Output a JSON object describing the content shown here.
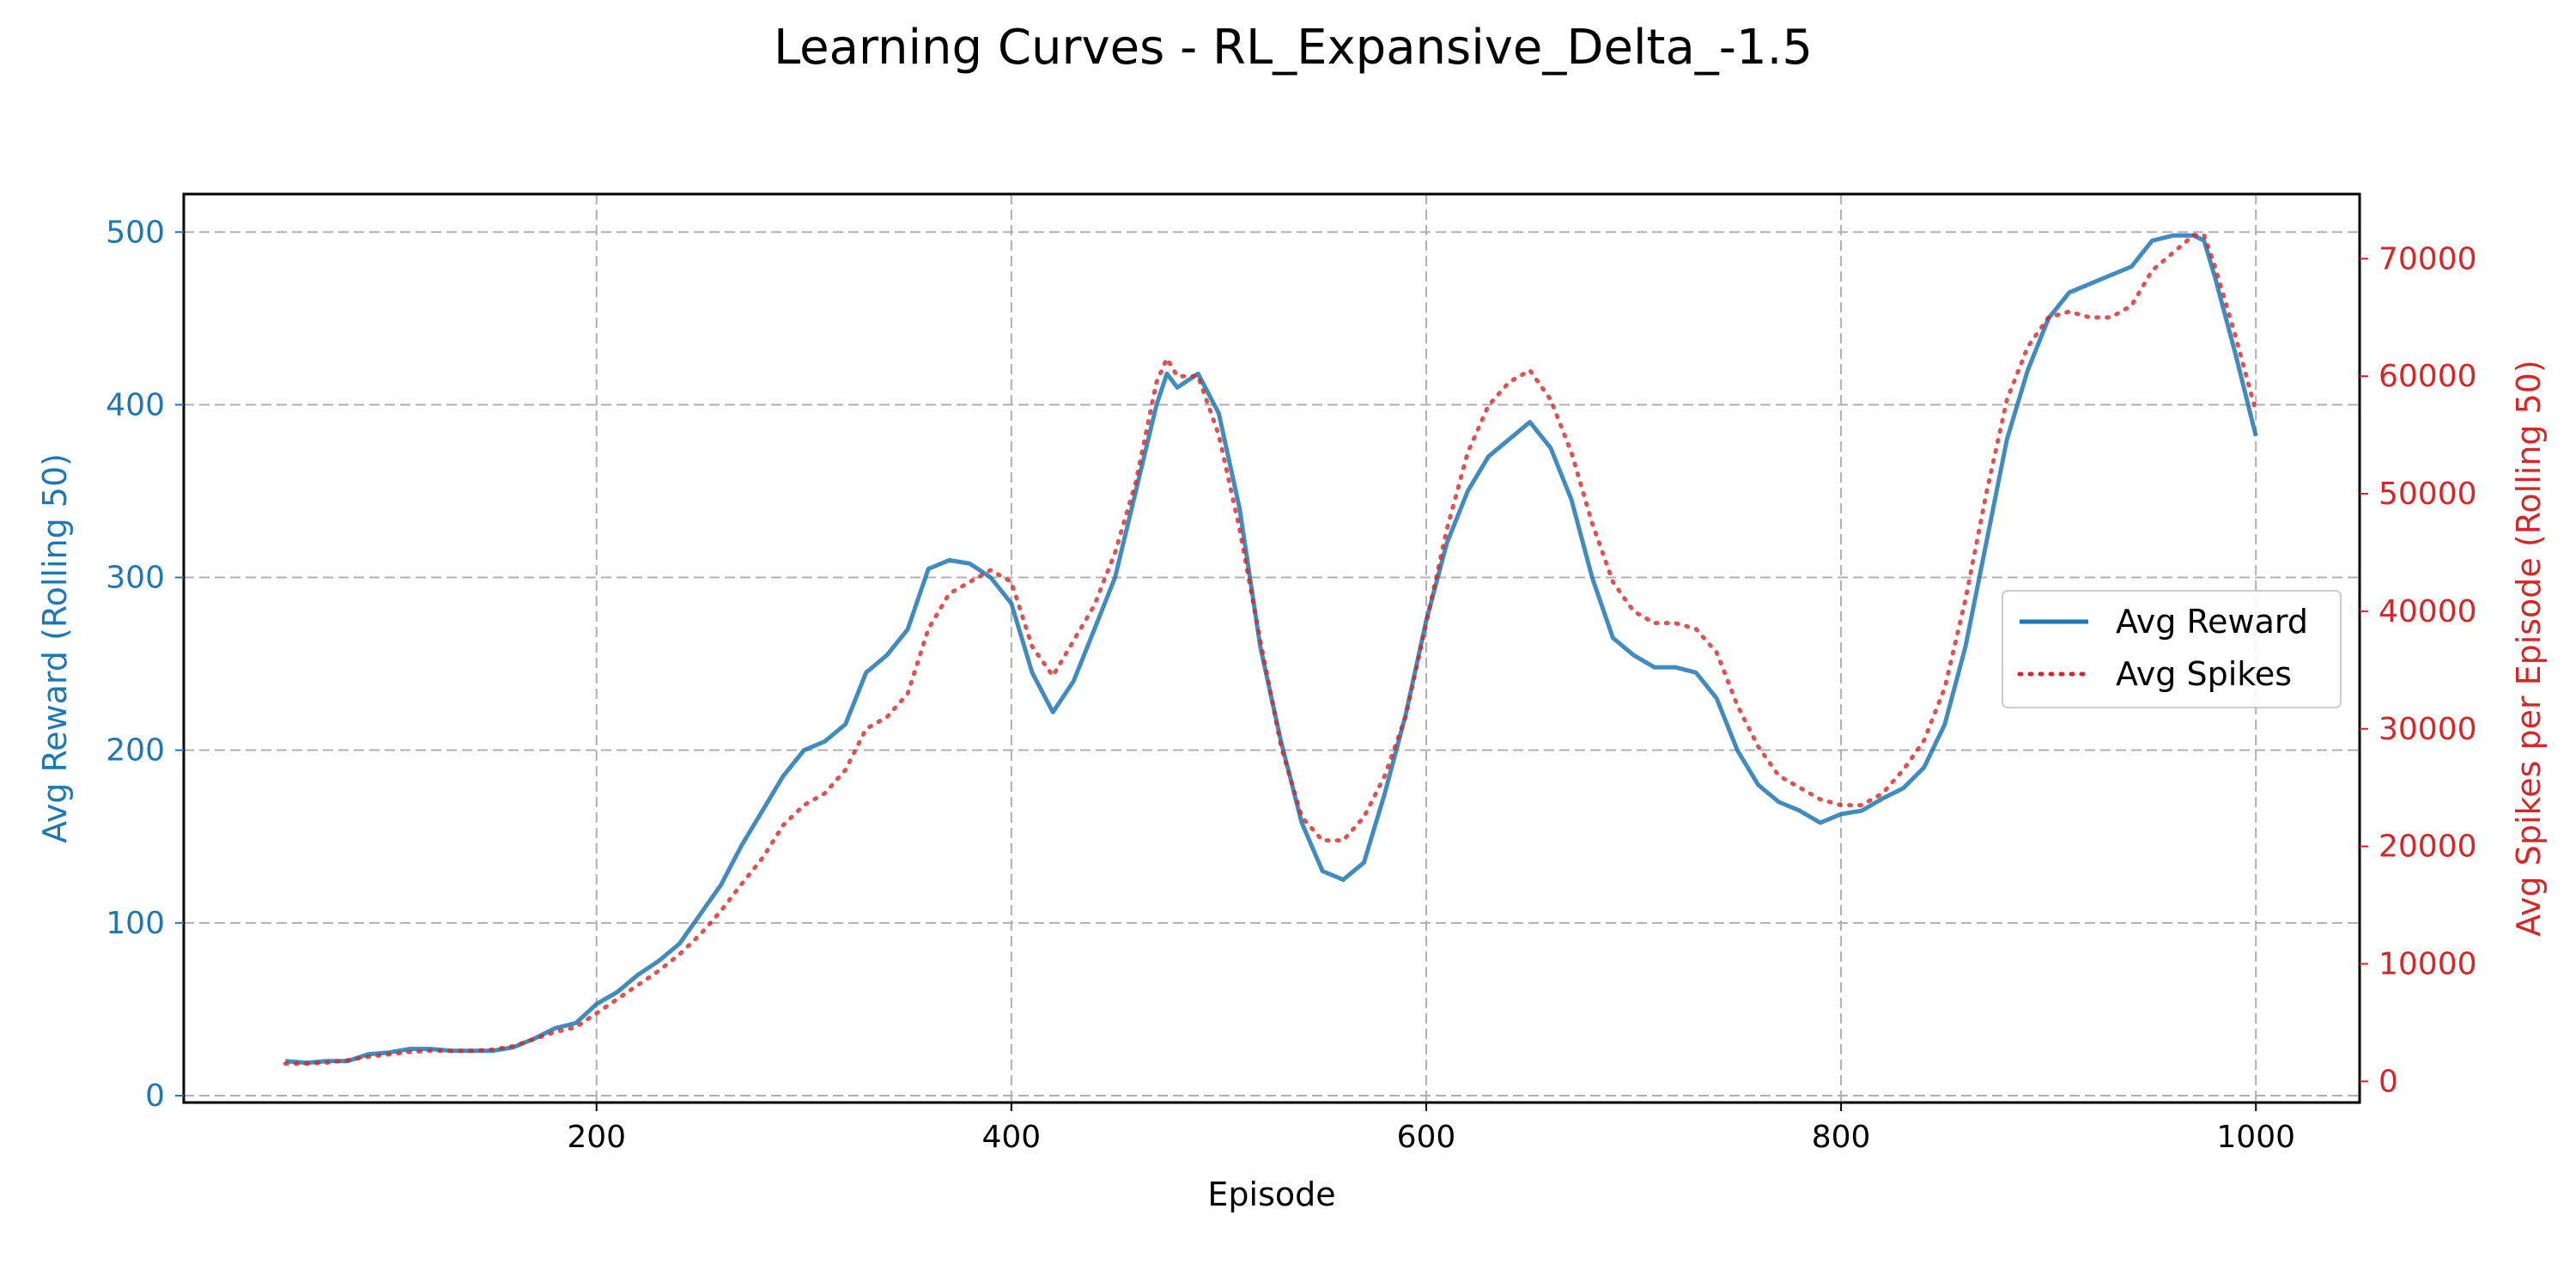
{
  "chart_data": {
    "type": "line",
    "title": "Learning Curves - RL_Expansive_Delta_-1.5",
    "xlabel": "Episode",
    "ylabel_left": "Avg Reward (Rolling 50)",
    "ylabel_right": "Avg Spikes per Episode (Rolling 50)",
    "xlim": [
      1,
      1050
    ],
    "ylim_left": [
      -4,
      522
    ],
    "ylim_right": [
      -1800,
      75500
    ],
    "x_ticks": [
      200,
      400,
      600,
      800,
      1000
    ],
    "y_ticks_left": [
      0,
      100,
      200,
      300,
      400,
      500
    ],
    "y_ticks_right": [
      0,
      10000,
      20000,
      30000,
      40000,
      50000,
      60000,
      70000
    ],
    "grid": true,
    "legend_position": "center-right",
    "colors": {
      "reward": "#1f77b4",
      "spikes": "#d62728",
      "grid": "#b0b0b0"
    },
    "series": [
      {
        "name": "Avg Reward",
        "axis": "left",
        "style": "solid",
        "x": [
          50,
          60,
          70,
          80,
          90,
          100,
          110,
          120,
          130,
          140,
          150,
          160,
          170,
          180,
          190,
          200,
          210,
          220,
          230,
          240,
          250,
          260,
          270,
          280,
          290,
          300,
          310,
          320,
          330,
          340,
          350,
          360,
          370,
          380,
          390,
          400,
          410,
          420,
          430,
          440,
          450,
          460,
          470,
          475,
          480,
          490,
          500,
          510,
          520,
          530,
          540,
          550,
          560,
          570,
          580,
          590,
          600,
          610,
          620,
          630,
          640,
          650,
          660,
          670,
          680,
          690,
          700,
          710,
          720,
          730,
          740,
          750,
          760,
          770,
          780,
          790,
          800,
          810,
          820,
          830,
          840,
          850,
          860,
          870,
          880,
          890,
          900,
          910,
          920,
          930,
          940,
          950,
          960,
          970,
          975,
          980,
          990,
          1000
        ],
        "values": [
          20,
          19,
          20,
          20,
          24,
          25,
          27,
          27,
          26,
          26,
          26,
          28,
          33,
          39,
          42,
          53,
          60,
          70,
          78,
          88,
          105,
          122,
          145,
          165,
          185,
          200,
          205,
          215,
          245,
          255,
          270,
          305,
          310,
          308,
          300,
          285,
          245,
          222,
          240,
          270,
          300,
          350,
          400,
          418,
          410,
          418,
          395,
          340,
          260,
          205,
          158,
          130,
          125,
          135,
          175,
          220,
          275,
          320,
          350,
          370,
          380,
          390,
          375,
          345,
          300,
          265,
          255,
          248,
          248,
          245,
          230,
          200,
          180,
          170,
          165,
          158,
          163,
          165,
          172,
          178,
          190,
          215,
          260,
          320,
          380,
          420,
          450,
          465,
          470,
          475,
          480,
          495,
          498,
          498,
          495,
          475,
          430,
          382
        ]
      },
      {
        "name": "Avg Spikes",
        "axis": "right",
        "style": "dotted",
        "x": [
          50,
          60,
          70,
          80,
          90,
          100,
          110,
          120,
          130,
          140,
          150,
          160,
          170,
          180,
          190,
          200,
          210,
          220,
          230,
          240,
          250,
          260,
          270,
          280,
          290,
          300,
          310,
          320,
          330,
          340,
          350,
          360,
          370,
          380,
          390,
          400,
          410,
          420,
          430,
          440,
          450,
          460,
          470,
          475,
          480,
          490,
          500,
          510,
          520,
          530,
          540,
          550,
          560,
          570,
          580,
          590,
          600,
          610,
          620,
          630,
          640,
          650,
          660,
          670,
          680,
          690,
          700,
          710,
          720,
          730,
          740,
          750,
          760,
          770,
          780,
          790,
          800,
          810,
          820,
          830,
          840,
          850,
          860,
          870,
          880,
          890,
          900,
          910,
          920,
          930,
          940,
          950,
          960,
          970,
          975,
          980,
          990,
          1000
        ],
        "values": [
          1500,
          1500,
          1600,
          1800,
          2100,
          2300,
          2500,
          2600,
          2600,
          2600,
          2700,
          3000,
          3600,
          4200,
          4600,
          5800,
          7000,
          8200,
          9400,
          10800,
          12500,
          14500,
          16800,
          19000,
          21800,
          23500,
          24500,
          26500,
          30000,
          31000,
          33000,
          38500,
          41500,
          42500,
          43500,
          42500,
          37000,
          34500,
          37500,
          40500,
          45000,
          51000,
          59500,
          61500,
          60000,
          60000,
          55000,
          47000,
          37500,
          28500,
          22500,
          20500,
          20500,
          22500,
          26000,
          31000,
          39000,
          47000,
          53500,
          57500,
          59500,
          60500,
          58000,
          53500,
          47500,
          42500,
          40000,
          39000,
          39000,
          38500,
          36500,
          32000,
          28500,
          26000,
          25000,
          24000,
          23500,
          23500,
          24500,
          26500,
          29000,
          33500,
          41000,
          50000,
          58000,
          62500,
          65000,
          65500,
          65000,
          65000,
          66000,
          69000,
          70500,
          72000,
          72000,
          69500,
          63500,
          57000
        ]
      }
    ]
  }
}
